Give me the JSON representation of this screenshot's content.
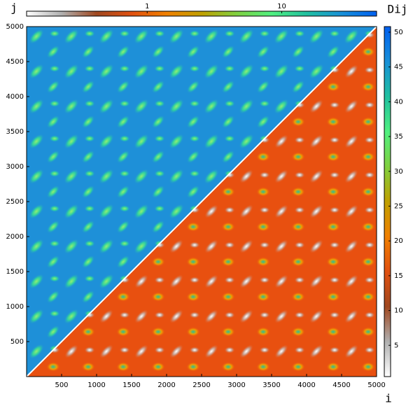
{
  "chart_data": {
    "type": "heatmap",
    "x_label": "i",
    "y_label": "j",
    "colorbar_label": "Dij",
    "xlim": [
      0,
      5000
    ],
    "xticks": [
      500,
      1000,
      1500,
      2000,
      2500,
      3000,
      3500,
      4000,
      4500,
      5000
    ],
    "ylim": [
      0,
      5000
    ],
    "yticks": [
      500,
      1000,
      1500,
      2000,
      2500,
      3000,
      3500,
      4000,
      4500,
      5000
    ],
    "colorbar": {
      "lim": [
        0.5,
        50.8
      ],
      "ticks": [
        5,
        10,
        15,
        20,
        25,
        30,
        35,
        40,
        45,
        50
      ],
      "colors": [
        "#ffffff",
        "#b0b0b0",
        "#a04820",
        "#e05010",
        "#f08000",
        "#c0a000",
        "#80d040",
        "#50f080",
        "#20c0a0",
        "#1890d8",
        "#0060f0"
      ]
    },
    "colorbar_top": {
      "lim": [
        0.127,
        50.7
      ],
      "ticks": [
        1,
        10
      ],
      "log": true,
      "colors": [
        "#ffffff",
        "#b0b0b0",
        "#a04820",
        "#e05010",
        "#f08000",
        "#c0a000",
        "#80d040",
        "#50f080",
        "#20c0a0",
        "#1890d8",
        "#0060f0"
      ]
    }
  }
}
